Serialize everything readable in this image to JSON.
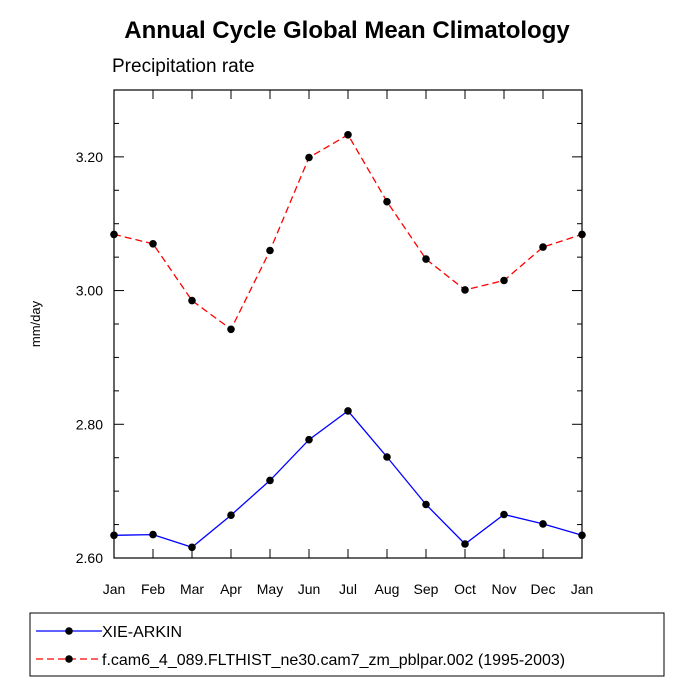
{
  "chart_data": {
    "type": "line",
    "title": "Annual Cycle Global Mean Climatology",
    "subtitle": "Precipitation rate",
    "xlabel": "",
    "ylabel": "mm/day",
    "categories": [
      "Jan",
      "Feb",
      "Mar",
      "Apr",
      "May",
      "Jun",
      "Jul",
      "Aug",
      "Sep",
      "Oct",
      "Nov",
      "Dec",
      "Jan"
    ],
    "ylim": [
      2.6,
      3.3
    ],
    "yticks": [
      2.6,
      2.8,
      3.0,
      3.2
    ],
    "ytick_labels": [
      "2.60",
      "2.80",
      "3.00",
      "3.20"
    ],
    "yminor": [
      2.65,
      2.7,
      2.75,
      2.85,
      2.9,
      2.95,
      3.05,
      3.1,
      3.15,
      3.25,
      3.3
    ],
    "grid": false,
    "legend_position": "bottom",
    "series": [
      {
        "name": "XIE-ARKIN",
        "color": "#0000ff",
        "dash": "solid",
        "values": [
          2.634,
          2.635,
          2.616,
          2.664,
          2.716,
          2.777,
          2.82,
          2.751,
          2.68,
          2.621,
          2.665,
          2.651,
          2.634
        ]
      },
      {
        "name": "f.cam6_4_089.FLTHIST_ne30.cam7_zm_pblpar.002 (1995-2003)",
        "color": "#ff0000",
        "dash": "dashed",
        "values": [
          3.084,
          3.07,
          2.985,
          2.942,
          3.06,
          3.199,
          3.233,
          3.133,
          3.047,
          3.001,
          3.015,
          3.065,
          3.084
        ]
      }
    ]
  }
}
